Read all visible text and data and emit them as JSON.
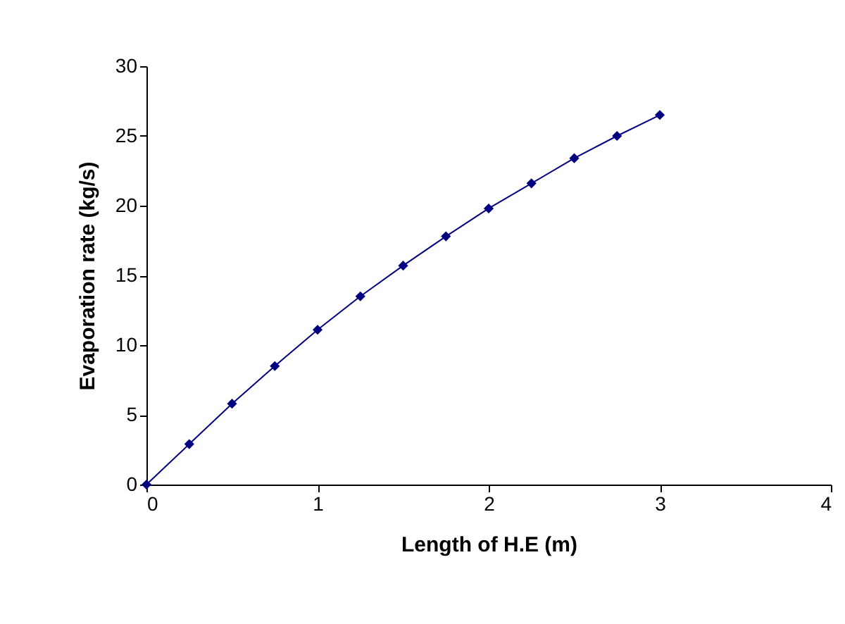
{
  "chart_data": {
    "type": "line",
    "xlabel": "Length of H.E (m)",
    "ylabel": "Evaporation rate (kg/s)",
    "x": [
      0,
      0.25,
      0.5,
      0.75,
      1.0,
      1.25,
      1.5,
      1.75,
      2.0,
      2.25,
      2.5,
      2.75,
      3.0
    ],
    "series": [
      {
        "color": "#000080",
        "values": [
          0,
          2.9,
          5.8,
          8.5,
          11.1,
          13.5,
          15.7,
          17.8,
          19.8,
          21.6,
          23.4,
          25.0,
          26.5
        ]
      }
    ],
    "xlim": [
      0,
      4
    ],
    "xticks": [
      0,
      1,
      2,
      3,
      4
    ],
    "ylim": [
      0,
      30
    ],
    "yticks": [
      0,
      5,
      10,
      15,
      20,
      25,
      30
    ],
    "grid": false,
    "marker": "diamond",
    "line_style": "solid"
  }
}
